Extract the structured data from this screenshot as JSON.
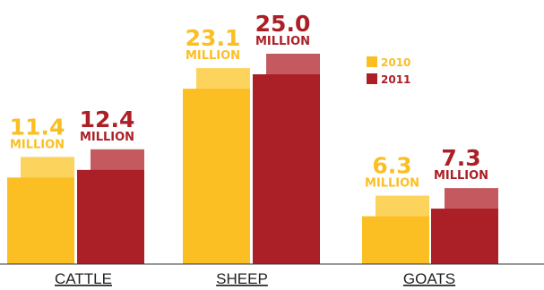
{
  "colors": {
    "s2010": "#fbbf24",
    "s2010_light": "#fcd35d",
    "s2011": "#ab1f26",
    "s2011_light": "#c45a60",
    "axis": "#333333",
    "category_text": "#222222"
  },
  "chart_data": {
    "type": "bar",
    "categories": [
      "CATTLE",
      "SHEEP",
      "GOATS"
    ],
    "series": [
      {
        "name": "2010",
        "values": [
          11.4,
          23.1,
          6.3
        ]
      },
      {
        "name": "2011",
        "values": [
          12.4,
          25.0,
          7.3
        ]
      }
    ],
    "data_labels": [
      [
        {
          "value": "11.4",
          "unit": "MILLION"
        },
        {
          "value": "12.4",
          "unit": "MILLION"
        }
      ],
      [
        {
          "value": "23.1",
          "unit": "MILLION"
        },
        {
          "value": "25.0",
          "unit": "MILLION"
        }
      ],
      [
        {
          "value": "6.3",
          "unit": "MILLION"
        },
        {
          "value": "7.3",
          "unit": "MILLION"
        }
      ]
    ],
    "ylim": [
      0,
      27
    ],
    "legend_position": "right",
    "grid": false,
    "title": "",
    "xlabel": "",
    "ylabel": ""
  }
}
